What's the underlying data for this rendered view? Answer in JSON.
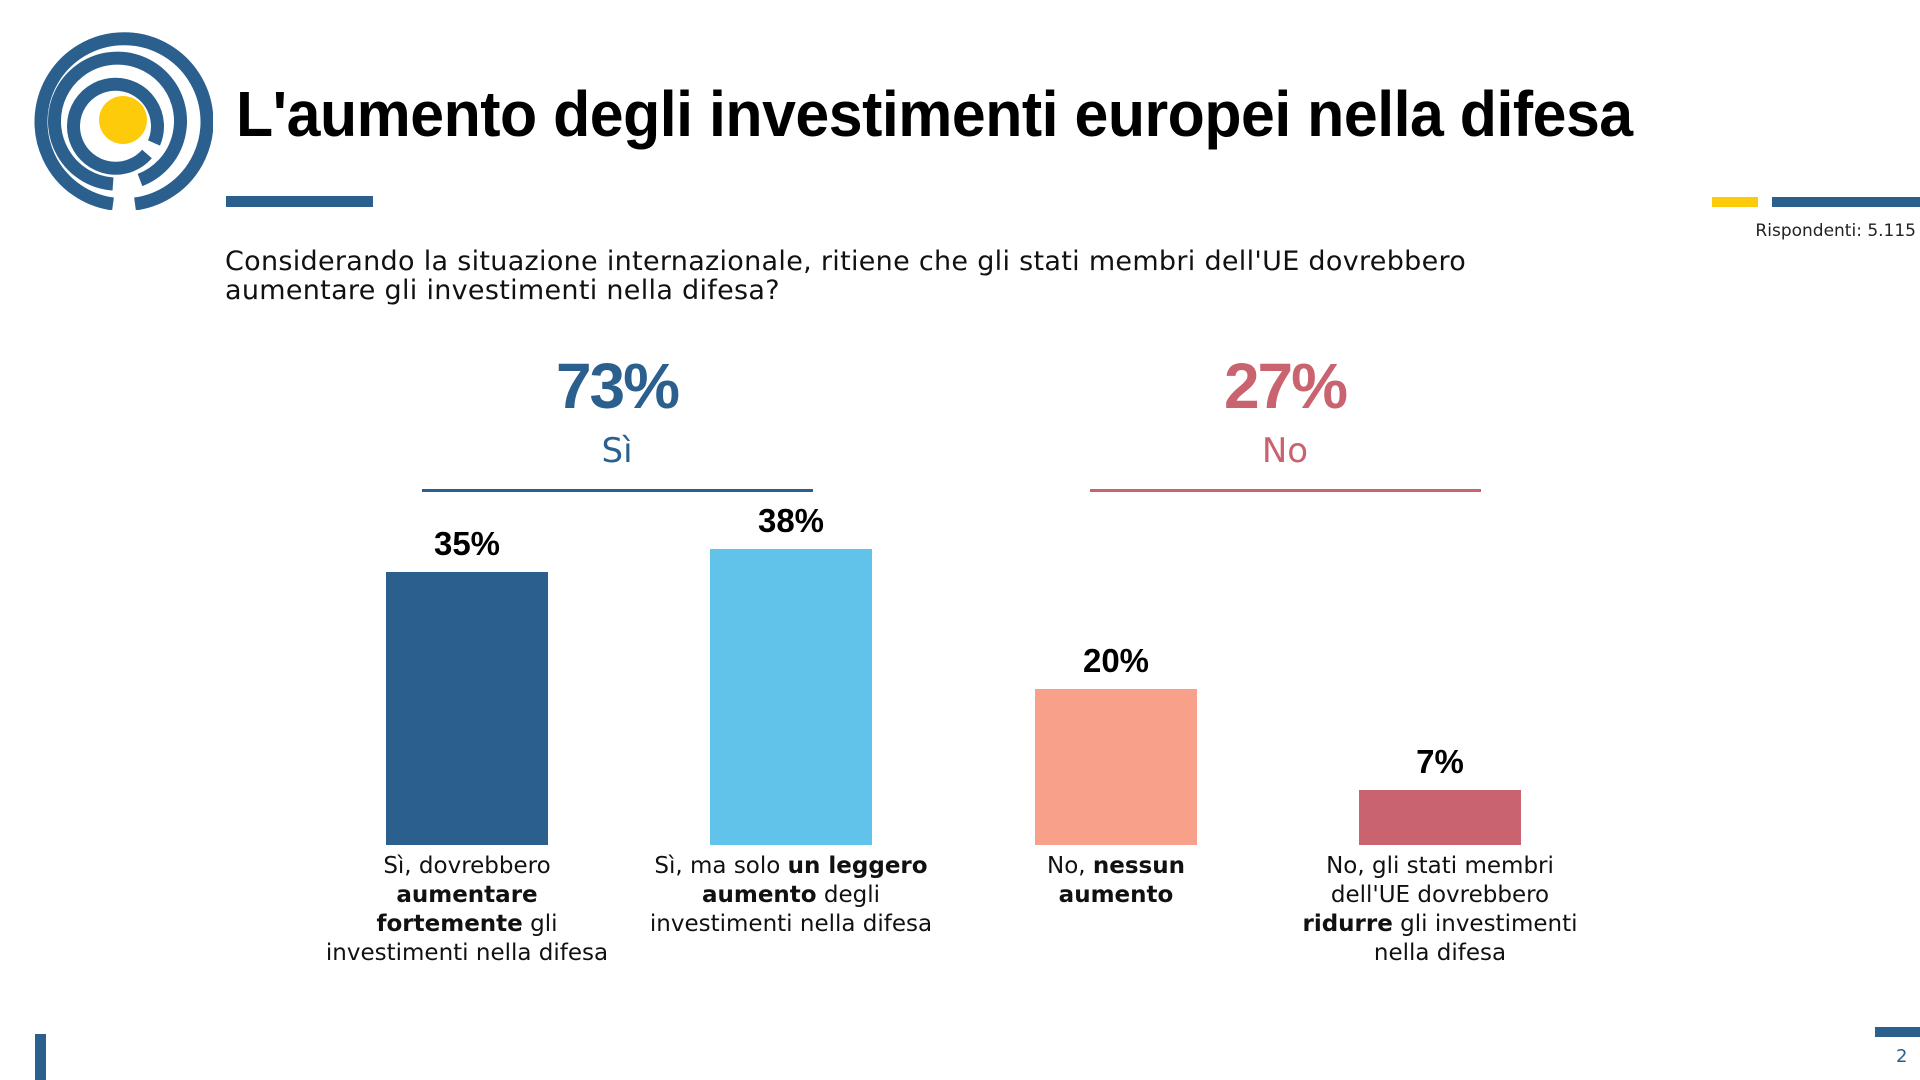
{
  "header": {
    "title": "L'aumento degli investimenti europei nella difesa",
    "respondents": "Rispondenti: 5.115"
  },
  "question": "Considerando la situazione internazionale, ritiene che gli stati membri dell'UE dovrebbero aumentare gli investimenti nella difesa?",
  "groups": [
    {
      "pct": "73%",
      "label": "Sì",
      "color": "#2a5f8e"
    },
    {
      "pct": "27%",
      "label": "No",
      "color": "#c96370"
    }
  ],
  "footer": {
    "page_number": "2"
  },
  "colors": {
    "brand_blue": "#2a5f8e",
    "brand_yellow": "#fdcb0a"
  },
  "chart_data": {
    "type": "bar",
    "title": "",
    "xlabel": "",
    "ylabel": "",
    "ylim": [
      0,
      40
    ],
    "grid": false,
    "categories": [
      "Sì, dovrebbero aumentare fortemente gli investimenti nella difesa",
      "Sì, ma solo un leggero aumento degli investimenti nella difesa",
      "No, nessun aumento",
      "No, gli stati membri dell'UE dovrebbero ridurre gli investimenti nella difesa"
    ],
    "category_labels_rich": [
      [
        {
          "t": "Sì, dovrebbero ",
          "b": false
        },
        {
          "t": "aumentare fortemente",
          "b": true
        },
        {
          "t": " gli investimenti nella difesa",
          "b": false
        }
      ],
      [
        {
          "t": "Sì, ma solo ",
          "b": false
        },
        {
          "t": "un leggero aumento",
          "b": true
        },
        {
          "t": " degli investimenti nella difesa",
          "b": false
        }
      ],
      [
        {
          "t": "No, ",
          "b": false
        },
        {
          "t": "nessun aumento",
          "b": true
        }
      ],
      [
        {
          "t": "No, gli stati membri dell'UE dovrebbero ",
          "b": false
        },
        {
          "t": "ridurre",
          "b": true
        },
        {
          "t": " gli investimenti nella difesa",
          "b": false
        }
      ]
    ],
    "values": [
      35,
      38,
      20,
      7
    ],
    "value_labels": [
      "35%",
      "38%",
      "20%",
      "7%"
    ],
    "bar_colors": [
      "#2a5f8e",
      "#62c3ea",
      "#f8a08a",
      "#c96370"
    ],
    "group_totals": [
      {
        "name": "Sì",
        "value": 73,
        "members": [
          0,
          1
        ]
      },
      {
        "name": "No",
        "value": 27,
        "members": [
          2,
          3
        ]
      }
    ]
  }
}
